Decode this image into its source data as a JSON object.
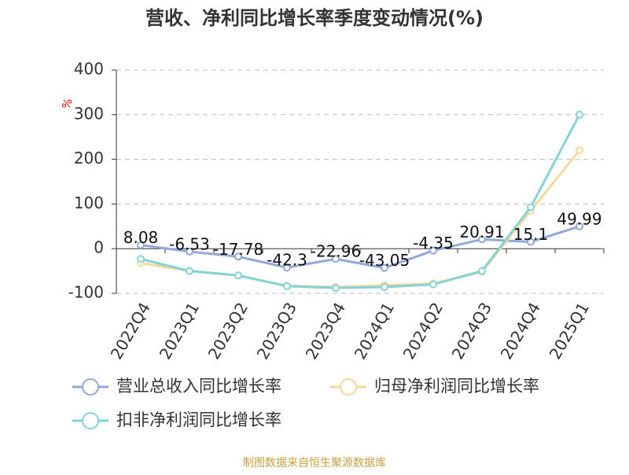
{
  "chart_data": {
    "type": "line",
    "title": "营收、净利同比增长率季度变动情况(%)",
    "y_label": "%",
    "source": "制图数据来自恒生聚源数据库",
    "categories": [
      "2022Q4",
      "2023Q1",
      "2023Q2",
      "2023Q3",
      "2023Q4",
      "2024Q1",
      "2024Q2",
      "2024Q3",
      "2024Q4",
      "2025Q1"
    ],
    "series": [
      {
        "name": "营业总收入同比增长率",
        "color": "#91a8d9",
        "values": [
          8.08,
          -6.53,
          -17.78,
          -42.3,
          -22.96,
          -43.05,
          -4.35,
          20.91,
          15.1,
          49.99
        ]
      },
      {
        "name": "归母净利润同比增长率",
        "color": "#f8d99b",
        "values": [
          -32,
          -50,
          -60,
          -83,
          -86,
          -82,
          -78,
          -52,
          85,
          220
        ]
      },
      {
        "name": "扣非净利润同比增长率",
        "color": "#84d3d6",
        "values": [
          -23,
          -50,
          -60,
          -84,
          -88,
          -86,
          -80,
          -50,
          93,
          300
        ]
      }
    ],
    "label_series": 0,
    "ylim": [
      -100,
      400
    ],
    "yticks": [
      -100,
      0,
      100,
      200,
      300,
      400
    ],
    "grid": true
  }
}
